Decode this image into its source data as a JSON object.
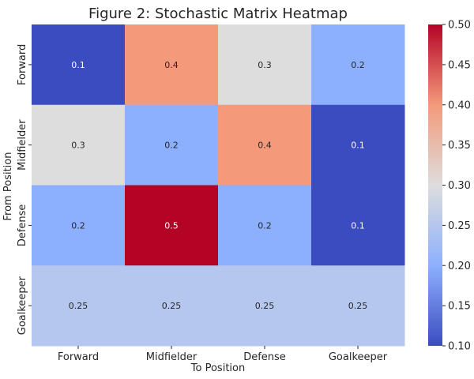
{
  "chart_data": {
    "type": "heatmap",
    "title": "Figure 2: Stochastic Matrix Heatmap",
    "xlabel": "To Position",
    "ylabel": "From Position",
    "x_categories": [
      "Forward",
      "Midfielder",
      "Defense",
      "Goalkeeper"
    ],
    "y_categories": [
      "Forward",
      "Midfielder",
      "Defense",
      "Goalkeeper"
    ],
    "values": [
      [
        0.1,
        0.4,
        0.3,
        0.2
      ],
      [
        0.3,
        0.2,
        0.4,
        0.1
      ],
      [
        0.2,
        0.5,
        0.2,
        0.1
      ],
      [
        0.25,
        0.25,
        0.25,
        0.25
      ]
    ],
    "value_labels": [
      [
        "0.1",
        "0.4",
        "0.3",
        "0.2"
      ],
      [
        "0.3",
        "0.2",
        "0.4",
        "0.1"
      ],
      [
        "0.2",
        "0.5",
        "0.2",
        "0.1"
      ],
      [
        "0.25",
        "0.25",
        "0.25",
        "0.25"
      ]
    ],
    "colormap": "coolwarm",
    "colorbar": {
      "min": 0.1,
      "max": 0.5,
      "ticks": [
        0.1,
        0.15,
        0.2,
        0.25,
        0.3,
        0.35,
        0.4,
        0.45,
        0.5
      ],
      "tick_labels": [
        "0.10",
        "0.15",
        "0.20",
        "0.25",
        "0.30",
        "0.35",
        "0.40",
        "0.45",
        "0.50"
      ]
    }
  }
}
